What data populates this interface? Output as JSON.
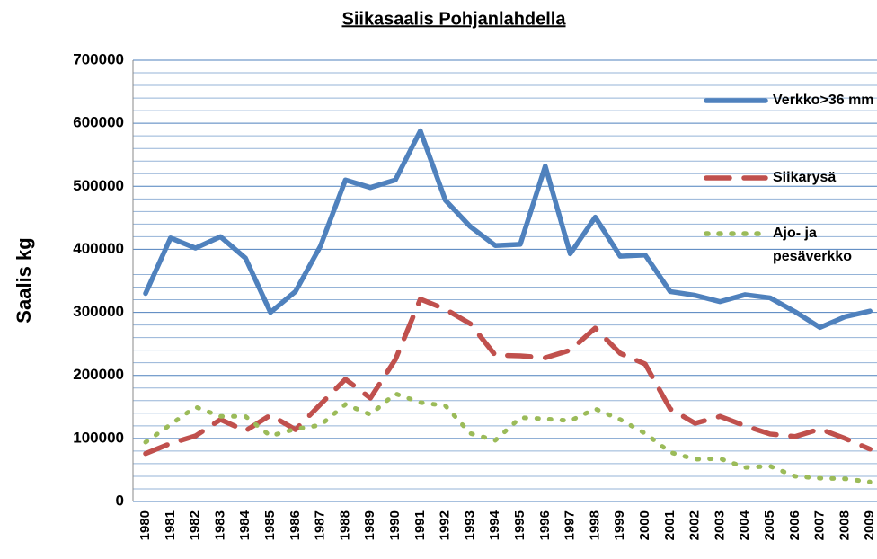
{
  "chart_data": {
    "type": "line",
    "title": "Siikasaalis Pohjanlahdella",
    "y_label": "Saalis kg",
    "categories": [
      "1980",
      "1981",
      "1982",
      "1983",
      "1984",
      "1985",
      "1986",
      "1987",
      "1988",
      "1989",
      "1990",
      "1991",
      "1992",
      "1993",
      "1994",
      "1995",
      "1996",
      "1997",
      "1998",
      "1999",
      "2000",
      "2001",
      "2002",
      "2003",
      "2004",
      "2005",
      "2006",
      "2007",
      "2008",
      "2009"
    ],
    "series": [
      {
        "name": "Verkko>36 mm",
        "color": "#4f81bd",
        "dash": "solid",
        "values": [
          330000,
          418000,
          402000,
          420000,
          386000,
          300000,
          333000,
          405000,
          510000,
          498000,
          510000,
          588000,
          478000,
          436000,
          406000,
          408000,
          532000,
          393000,
          451000,
          389000,
          391000,
          333000,
          327000,
          317000,
          328000,
          323000,
          301000,
          276000,
          293000,
          302000
        ]
      },
      {
        "name": "Siikarysä",
        "color": "#c0504d",
        "dash": "dashed",
        "values": [
          76000,
          92000,
          104000,
          130000,
          112000,
          137000,
          114000,
          154000,
          194000,
          164000,
          225000,
          321000,
          305000,
          282000,
          232000,
          231000,
          228000,
          240000,
          275000,
          235000,
          218000,
          147000,
          124000,
          135000,
          120000,
          107000,
          103000,
          115000,
          100000,
          83000
        ]
      },
      {
        "name": "Ajo- ja pesäverkko",
        "color": "#9bbb59",
        "dash": "dotted",
        "values": [
          94000,
          122000,
          150000,
          135000,
          135000,
          104000,
          115000,
          121000,
          154000,
          138000,
          171000,
          157000,
          152000,
          108000,
          97000,
          133000,
          131000,
          128000,
          147000,
          130000,
          108000,
          78000,
          67000,
          68000,
          54000,
          56000,
          40000,
          37000,
          36000,
          31000
        ]
      }
    ],
    "ylim": [
      0,
      700000
    ],
    "yticks": [
      0,
      100000,
      200000,
      300000,
      400000,
      500000,
      600000,
      700000
    ],
    "yminorticks": [
      20000,
      40000,
      60000,
      80000,
      120000,
      140000,
      160000,
      180000,
      220000,
      240000,
      260000,
      280000,
      320000,
      340000,
      360000,
      380000,
      420000,
      440000,
      460000,
      480000,
      520000,
      540000,
      560000,
      580000,
      620000,
      640000,
      660000,
      680000
    ],
    "grid": true,
    "legend": "right"
  }
}
